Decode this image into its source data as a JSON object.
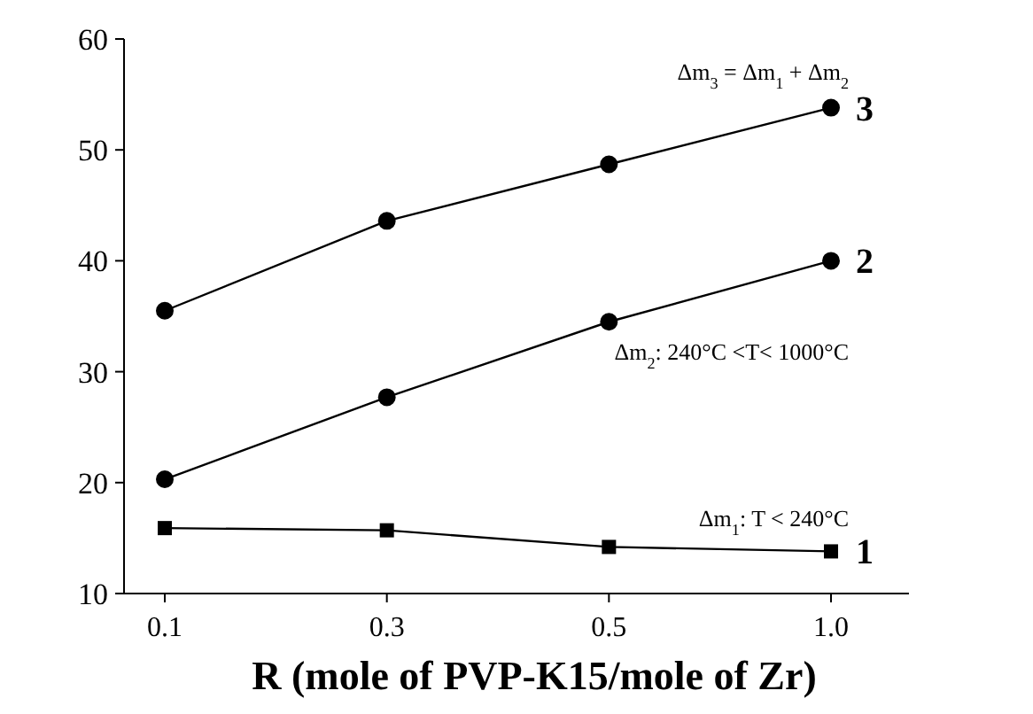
{
  "chart_data": {
    "type": "line",
    "xlabel": "R (mole of PVP-K15/mole of Zr)",
    "categories": [
      "0.1",
      "0.3",
      "0.5",
      "1.0"
    ],
    "series": [
      {
        "name": "1",
        "color": "#000000",
        "marker": "square",
        "values": [
          15.9,
          15.7,
          14.2,
          13.8
        ]
      },
      {
        "name": "2",
        "color": "#000000",
        "marker": "circle",
        "values": [
          20.3,
          27.7,
          34.5,
          40.0
        ]
      },
      {
        "name": "3",
        "color": "#000000",
        "marker": "circle",
        "values": [
          35.5,
          43.6,
          48.7,
          53.8
        ]
      }
    ],
    "ylim": [
      10,
      60
    ],
    "yticks": [
      10,
      20,
      30,
      40,
      50,
      60
    ],
    "grid": false,
    "line_style": "solid",
    "annotations": [
      "Δm$_{1}$: T < 240°C",
      "Δm$_{2}$: 240°C <T< 1000°C",
      "Δm$_{3}$ = Δm$_{1}$ + Δm$_{2}$"
    ]
  }
}
